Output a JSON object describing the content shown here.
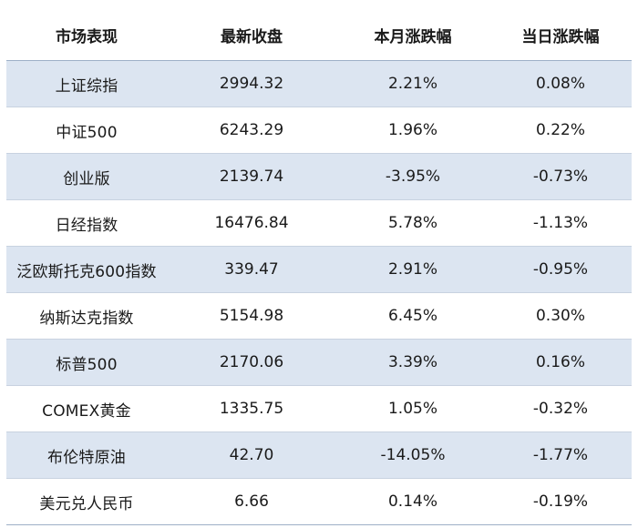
{
  "table": {
    "headers": [
      "市场表现",
      "最新收盘",
      "本月涨跌幅",
      "当日涨跌幅"
    ],
    "rows": [
      {
        "name": "上证综指",
        "close": "2994.32",
        "month": "2.21%",
        "day": "0.08%"
      },
      {
        "name": "中证500",
        "close": "6243.29",
        "month": "1.96%",
        "day": "0.22%"
      },
      {
        "name": "创业版",
        "close": "2139.74",
        "month": "-3.95%",
        "day": "-0.73%"
      },
      {
        "name": "日经指数",
        "close": "16476.84",
        "month": "5.78%",
        "day": "-1.13%"
      },
      {
        "name": "泛欧斯托克600指数",
        "close": "339.47",
        "month": "2.91%",
        "day": "-0.95%"
      },
      {
        "name": "纳斯达克指数",
        "close": "5154.98",
        "month": "6.45%",
        "day": "0.30%"
      },
      {
        "name": "标普500",
        "close": "2170.06",
        "month": "3.39%",
        "day": "0.16%"
      },
      {
        "name": "COMEX黄金",
        "close": "1335.75",
        "month": "1.05%",
        "day": "-0.32%"
      },
      {
        "name": "布伦特原油",
        "close": "42.70",
        "month": "-14.05%",
        "day": "-1.77%"
      },
      {
        "name": "美元兑人民币",
        "close": "6.66",
        "month": "0.14%",
        "day": "-0.19%"
      }
    ]
  },
  "colors": {
    "stripe": "#dce5f1",
    "rule": "#9dafc7"
  }
}
